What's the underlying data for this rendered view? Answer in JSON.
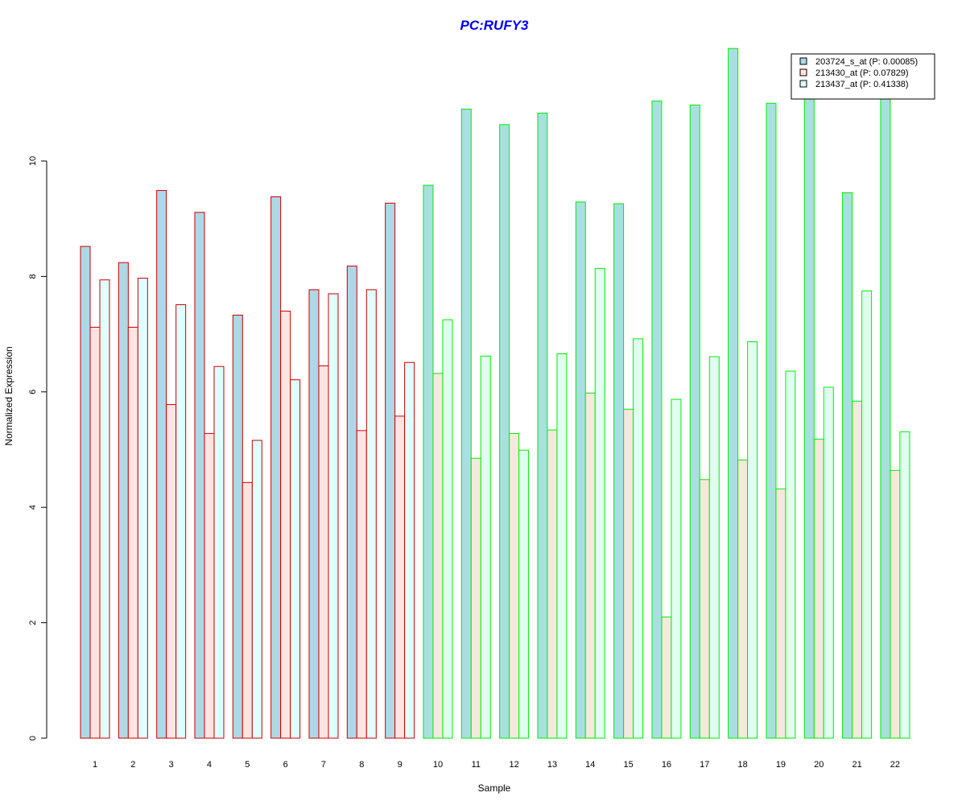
{
  "chart_data": {
    "type": "bar",
    "title": "PC:RUFY3",
    "xlabel": "Sample",
    "ylabel": "Normalized Expression",
    "ylim": [
      0,
      12
    ],
    "yticks": [
      0,
      2,
      4,
      6,
      8,
      10
    ],
    "categories": [
      "1",
      "2",
      "3",
      "4",
      "5",
      "6",
      "7",
      "8",
      "9",
      "10",
      "11",
      "12",
      "13",
      "14",
      "15",
      "16",
      "17",
      "18",
      "19",
      "20",
      "21",
      "22"
    ],
    "series": [
      {
        "name": "203724_s_at (P: 0.00085)",
        "fill": "#add8e6",
        "values": [
          8.52,
          8.24,
          9.49,
          9.11,
          7.33,
          9.38,
          7.77,
          8.18,
          9.27,
          9.58,
          10.9,
          10.63,
          10.83,
          9.29,
          9.26,
          11.04,
          10.97,
          11.95,
          11.0,
          11.2,
          9.45,
          11.2
        ]
      },
      {
        "name": "213430_at (P: 0.07829)",
        "fill": "#ffe4e1",
        "values": [
          7.12,
          7.12,
          5.78,
          5.28,
          4.43,
          7.4,
          6.45,
          5.33,
          5.58,
          6.32,
          4.85,
          5.28,
          5.34,
          5.98,
          5.7,
          2.1,
          4.48,
          4.82,
          4.32,
          5.18,
          5.84,
          4.64
        ]
      },
      {
        "name": "213437_at (P: 0.41338)",
        "fill": "#e0ffff",
        "values": [
          7.94,
          7.97,
          7.51,
          6.44,
          5.16,
          6.21,
          7.7,
          7.77,
          6.51,
          7.25,
          6.62,
          4.99,
          6.66,
          8.14,
          6.92,
          5.87,
          6.61,
          6.87,
          6.36,
          6.08,
          7.75,
          5.31
        ]
      }
    ],
    "group_border_colors": {
      "samples_1_to_9": "#cc0000",
      "samples_10_to_22": "#00ee00"
    },
    "group_fill_overrides": {
      "samples_10_to_22": [
        "#a8e0e0",
        "#f5e8dc",
        "#e0fff0"
      ]
    },
    "legend_placement": "top-right",
    "grid": false
  }
}
